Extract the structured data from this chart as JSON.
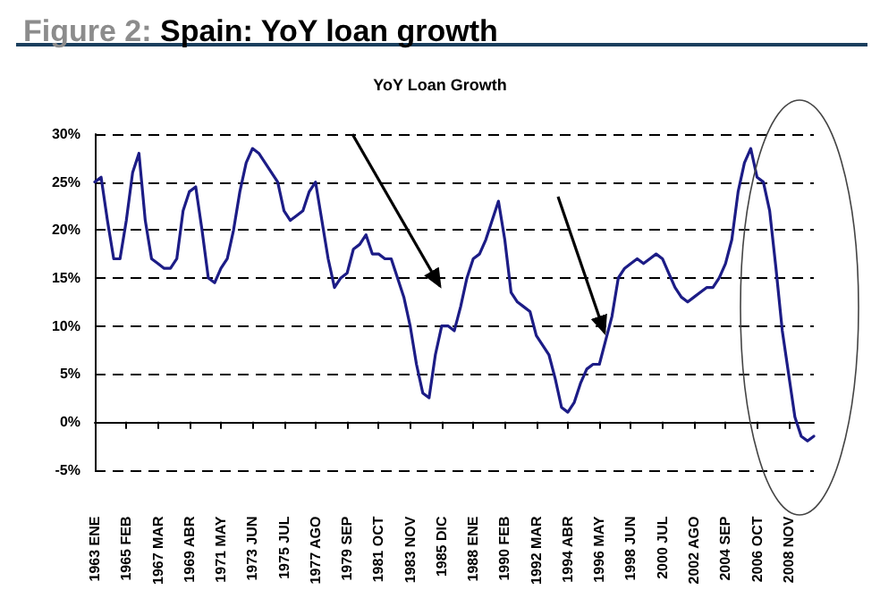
{
  "chart_data": {
    "type": "line",
    "title": "Figure 2: Spain: YoY loan growth",
    "subtitle": "YoY Loan Growth",
    "categories": [
      "1963 ENE",
      null,
      null,
      null,
      null,
      "1965 FEB",
      null,
      null,
      null,
      null,
      "1967 MAR",
      null,
      null,
      null,
      null,
      "1969 ABR",
      null,
      null,
      null,
      null,
      "1971 MAY",
      null,
      null,
      null,
      null,
      "1973 JUN",
      null,
      null,
      null,
      null,
      "1975 JUL",
      null,
      null,
      null,
      null,
      "1977 AGO",
      null,
      null,
      null,
      null,
      "1979 SEP",
      null,
      null,
      null,
      null,
      "1981 OCT",
      null,
      null,
      null,
      null,
      "1983 NOV",
      null,
      null,
      null,
      null,
      "1985 DIC",
      null,
      null,
      null,
      null,
      "1988 ENE",
      null,
      null,
      null,
      null,
      "1990 FEB",
      null,
      null,
      null,
      null,
      "1992 MAR",
      null,
      null,
      null,
      null,
      "1994 ABR",
      null,
      null,
      null,
      null,
      "1996 MAY",
      null,
      null,
      null,
      null,
      "1998 JUN",
      null,
      null,
      null,
      null,
      "2000 JUL",
      null,
      null,
      null,
      null,
      "2002 AGO",
      null,
      null,
      null,
      null,
      "2004 SEP",
      null,
      null,
      null,
      null,
      "2006 OCT",
      null,
      null,
      null,
      null,
      "2008 NOV",
      null,
      null,
      null,
      null
    ],
    "series": [
      {
        "color": "#1c1c86",
        "values": [
          25,
          25.5,
          21,
          17,
          17,
          21,
          26,
          28,
          21,
          17,
          16.5,
          16,
          16,
          17,
          22,
          24,
          24.5,
          20,
          15,
          14.5,
          16,
          17,
          20,
          24,
          27,
          28.5,
          28,
          27,
          26,
          25,
          22,
          21,
          21.5,
          22,
          24,
          25,
          21,
          17,
          14,
          15,
          15.5,
          18,
          18.5,
          19.5,
          17.5,
          17.5,
          17,
          17,
          15,
          13,
          10,
          6,
          3,
          2.5,
          7,
          10,
          10,
          9.5,
          12,
          15,
          17,
          17.5,
          19,
          21,
          23,
          19,
          13.5,
          12.5,
          12,
          11.5,
          9,
          8,
          7,
          4.5,
          1.5,
          1,
          2,
          4,
          5.5,
          6,
          6,
          8.5,
          11,
          15,
          16,
          16.5,
          17,
          16.5,
          17,
          17.5,
          17,
          15.5,
          14,
          13,
          12.5,
          13,
          13.5,
          14,
          14,
          15,
          16.5,
          19,
          24,
          27,
          28.5,
          25.5,
          25,
          22,
          16,
          9.5,
          5,
          0.5,
          -1.5,
          -2,
          -1.5
        ]
      }
    ],
    "ylim": [
      -5,
      30
    ],
    "yticks": [
      {
        "value": -5,
        "label": "-5%"
      },
      {
        "value": 0,
        "label": "0%"
      },
      {
        "value": 5,
        "label": "5%"
      },
      {
        "value": 10,
        "label": "10%"
      },
      {
        "value": 15,
        "label": "15%"
      },
      {
        "value": 20,
        "label": "20%"
      },
      {
        "value": 25,
        "label": "25%"
      },
      {
        "value": 30,
        "label": "30%"
      }
    ],
    "grid": "y",
    "line_style": "solid"
  }
}
